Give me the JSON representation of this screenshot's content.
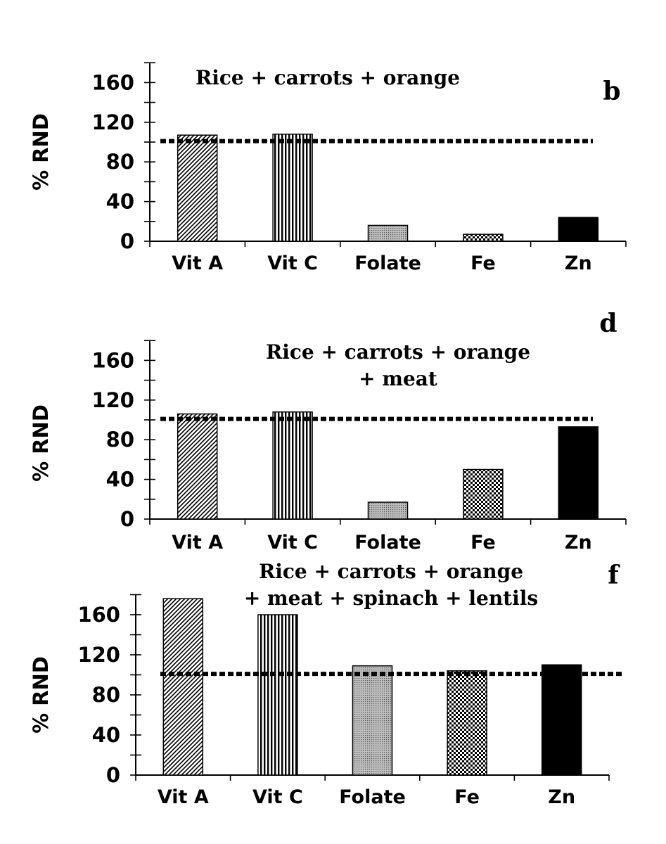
{
  "chart_data": [
    {
      "type": "bar",
      "panel_label": "b",
      "title_lines": [
        "Rice + carrots + orange"
      ],
      "xlabel": "",
      "ylabel": "% RND",
      "ylim": [
        0,
        180
      ],
      "yticks": [
        0,
        40,
        80,
        120,
        160
      ],
      "categories": [
        "Vit A",
        "Vit C",
        "Folate",
        "Fe",
        "Zn"
      ],
      "values": [
        107,
        108,
        16,
        7,
        24
      ],
      "reference_line": 101,
      "bar_patterns": [
        "diagonal-hatch",
        "vertical-lines",
        "fine-dots",
        "cross-hatch",
        "solid"
      ],
      "grid": false
    },
    {
      "type": "bar",
      "panel_label": "d",
      "title_lines": [
        "Rice + carrots + orange",
        "+ meat"
      ],
      "xlabel": "",
      "ylabel": "% RND",
      "ylim": [
        0,
        180
      ],
      "yticks": [
        0,
        40,
        80,
        120,
        160
      ],
      "categories": [
        "Vit A",
        "Vit C",
        "Folate",
        "Fe",
        "Zn"
      ],
      "values": [
        106,
        108,
        17,
        50,
        93
      ],
      "reference_line": 101,
      "bar_patterns": [
        "diagonal-hatch",
        "vertical-lines",
        "fine-dots",
        "cross-hatch",
        "solid"
      ],
      "grid": false
    },
    {
      "type": "bar",
      "panel_label": "f",
      "title_lines": [
        "Rice + carrots + orange",
        "+ meat + spinach + lentils"
      ],
      "xlabel": "",
      "ylabel": "% RND",
      "ylim": [
        0,
        180
      ],
      "yticks": [
        0,
        40,
        80,
        120,
        160
      ],
      "categories": [
        "Vit A",
        "Vit C",
        "Folate",
        "Fe",
        "Zn"
      ],
      "values": [
        176,
        160,
        109,
        104,
        110
      ],
      "reference_line": 101,
      "bar_patterns": [
        "diagonal-hatch",
        "vertical-lines",
        "fine-dots",
        "cross-hatch",
        "solid"
      ],
      "grid": false
    }
  ]
}
